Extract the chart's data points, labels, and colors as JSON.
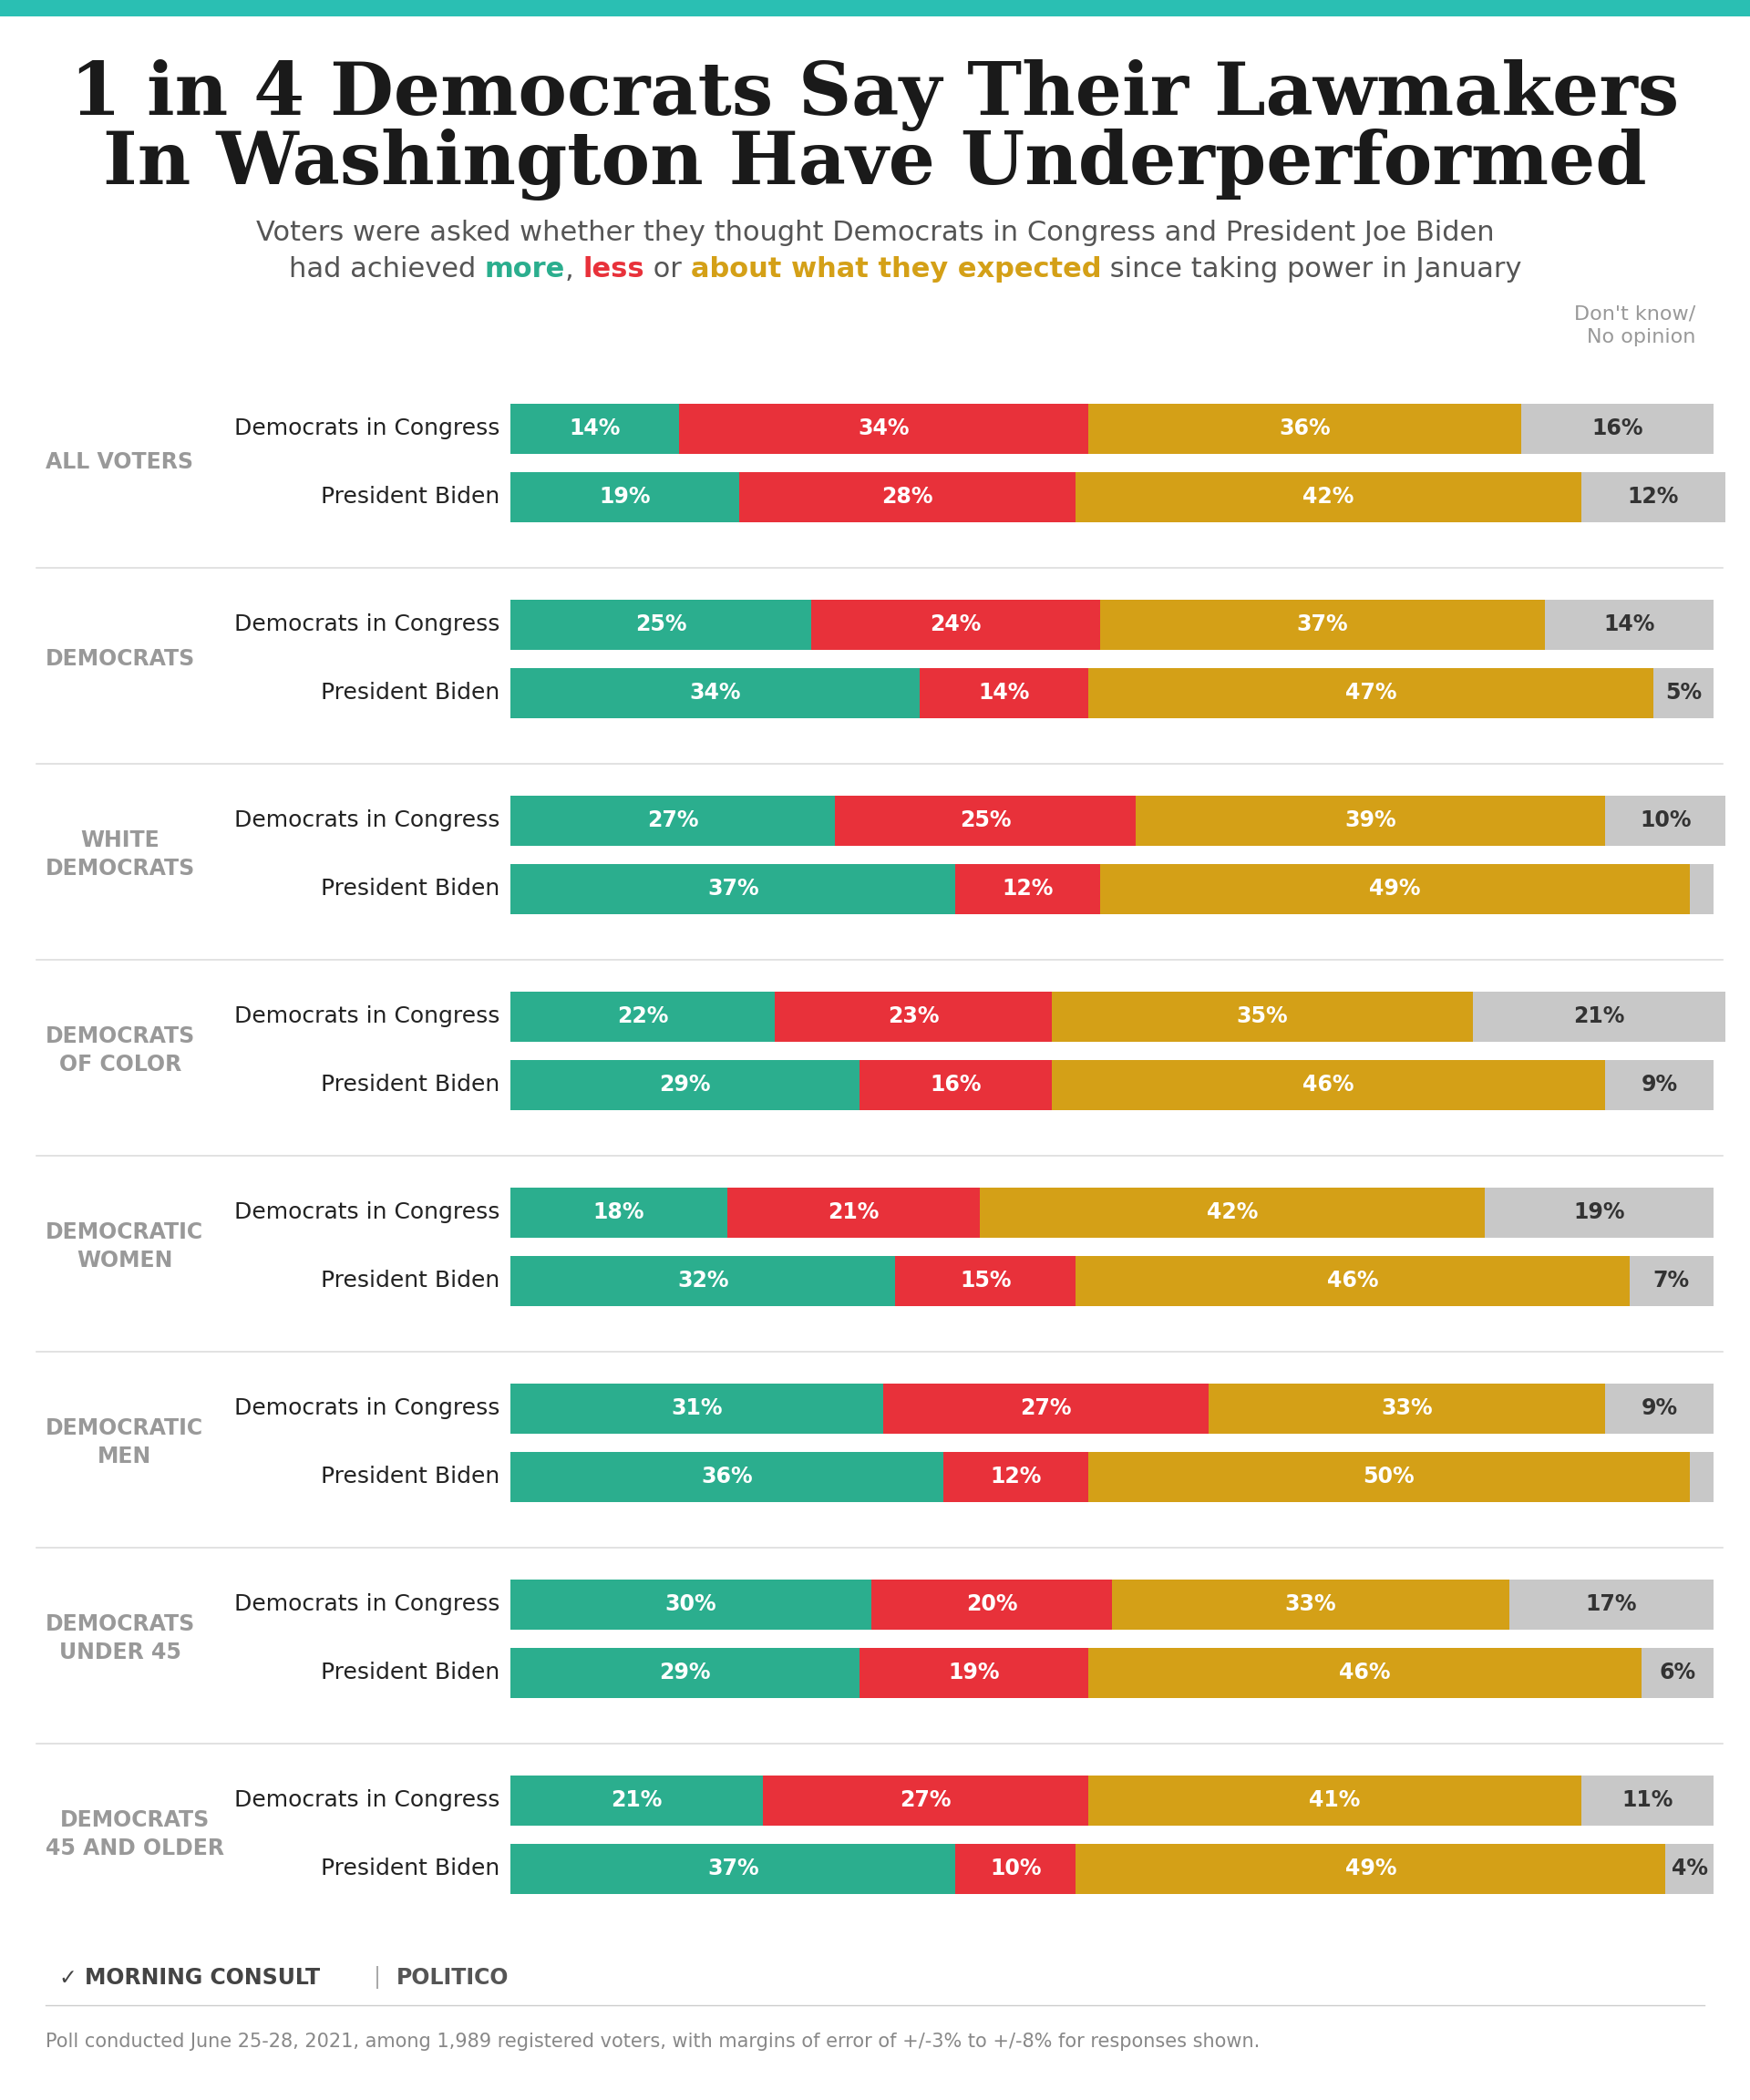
{
  "title_line1": "1 in 4 Democrats Say Their Lawmakers",
  "title_line2": "In Washington Have Underperformed",
  "subtitle_plain": "Voters were asked whether they thought Democrats in Congress and President Joe Biden",
  "color_more": "#2BAE8E",
  "color_less": "#E8313A",
  "color_about": "#D4A017",
  "color_dk": "#C8C8C8",
  "color_teal_top": "#2ABFB3",
  "background_color": "#FFFFFF",
  "footnote": "Poll conducted June 25-28, 2021, among 1,989 registered voters, with margins of error of +/-3% to +/-8% for responses shown.",
  "groups": [
    {
      "label": "ALL VOTERS",
      "multiline": false,
      "rows": [
        {
          "name": "Democrats in Congress",
          "more": 14,
          "less": 34,
          "about": 36,
          "dk": 16
        },
        {
          "name": "President Biden",
          "more": 19,
          "less": 28,
          "about": 42,
          "dk": 12
        }
      ]
    },
    {
      "label": "DEMOCRATS",
      "multiline": false,
      "rows": [
        {
          "name": "Democrats in Congress",
          "more": 25,
          "less": 24,
          "about": 37,
          "dk": 14
        },
        {
          "name": "President Biden",
          "more": 34,
          "less": 14,
          "about": 47,
          "dk": 5
        }
      ]
    },
    {
      "label": "WHITE\nDEMOCRATS",
      "multiline": true,
      "rows": [
        {
          "name": "Democrats in Congress",
          "more": 27,
          "less": 25,
          "about": 39,
          "dk": 10
        },
        {
          "name": "President Biden",
          "more": 37,
          "less": 12,
          "about": 49,
          "dk": 2
        }
      ]
    },
    {
      "label": "DEMOCRATS\nOF COLOR",
      "multiline": true,
      "rows": [
        {
          "name": "Democrats in Congress",
          "more": 22,
          "less": 23,
          "about": 35,
          "dk": 21
        },
        {
          "name": "President Biden",
          "more": 29,
          "less": 16,
          "about": 46,
          "dk": 9
        }
      ]
    },
    {
      "label": "DEMOCRATIC\nWOMEN",
      "multiline": true,
      "rows": [
        {
          "name": "Democrats in Congress",
          "more": 18,
          "less": 21,
          "about": 42,
          "dk": 19
        },
        {
          "name": "President Biden",
          "more": 32,
          "less": 15,
          "about": 46,
          "dk": 7
        }
      ]
    },
    {
      "label": "DEMOCRATIC\nMEN",
      "multiline": true,
      "rows": [
        {
          "name": "Democrats in Congress",
          "more": 31,
          "less": 27,
          "about": 33,
          "dk": 9
        },
        {
          "name": "President Biden",
          "more": 36,
          "less": 12,
          "about": 50,
          "dk": 2
        }
      ]
    },
    {
      "label": "DEMOCRATS\nUNDER 45",
      "multiline": true,
      "rows": [
        {
          "name": "Democrats in Congress",
          "more": 30,
          "less": 20,
          "about": 33,
          "dk": 17
        },
        {
          "name": "President Biden",
          "more": 29,
          "less": 19,
          "about": 46,
          "dk": 6
        }
      ]
    },
    {
      "label": "DEMOCRATS\n45 AND OLDER",
      "multiline": true,
      "rows": [
        {
          "name": "Democrats in Congress",
          "more": 21,
          "less": 27,
          "about": 41,
          "dk": 11
        },
        {
          "name": "President Biden",
          "more": 37,
          "less": 10,
          "about": 49,
          "dk": 4
        }
      ]
    }
  ]
}
